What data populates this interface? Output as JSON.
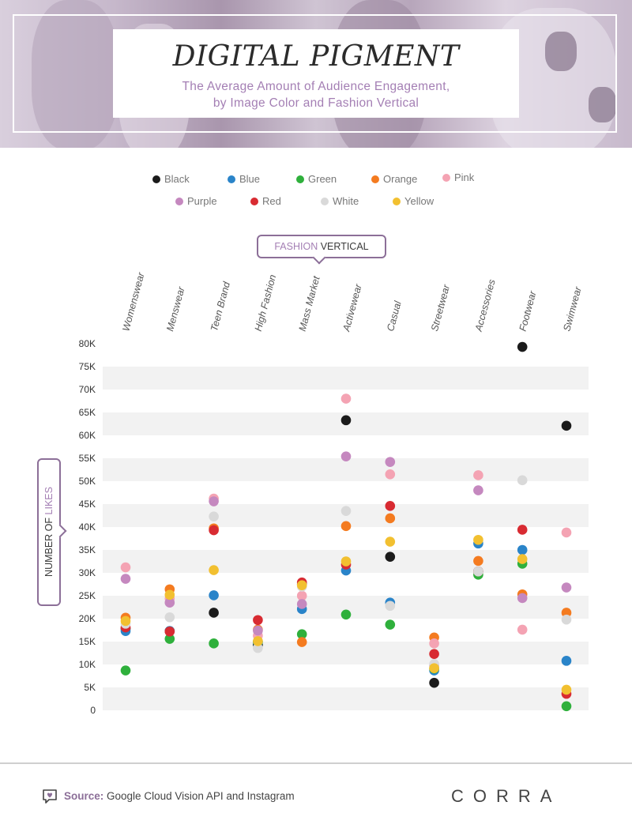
{
  "header": {
    "title": "DIGITAL PIGMENT",
    "subtitle_line1": "The Average Amount of Audience Engagement,",
    "subtitle_line2": "by Image Color and Fashion Vertical"
  },
  "axis_labels": {
    "x_part1": "FASHION",
    "x_part2": "VERTICAL",
    "y_part1": "NUMBER OF",
    "y_part2": "LIKES"
  },
  "footer": {
    "source_label": "Source:",
    "source_text": "Google Cloud Vision API and Instagram",
    "brand": "CORRA"
  },
  "colors": {
    "Black": "#1b1b1b",
    "Blue": "#2a84c9",
    "Green": "#2fb03c",
    "Orange": "#f47b20",
    "Pink": "#f4a3b3",
    "Purple": "#c588bf",
    "Red": "#d82b32",
    "White": "#d9d9d9",
    "Yellow": "#f2c030",
    "accent": "#8c6f98",
    "band": "#f2f2f2"
  },
  "chart_data": {
    "type": "scatter",
    "categories": [
      "Womenswear",
      "Menswear",
      "Teen Brand",
      "High Fashion",
      "Mass Market",
      "Activewear",
      "Casual",
      "Streetwear",
      "Accessories",
      "Footwear",
      "Swimwear"
    ],
    "ylim": [
      0,
      80000
    ],
    "yticks": [
      0,
      5000,
      10000,
      15000,
      20000,
      25000,
      30000,
      35000,
      40000,
      45000,
      50000,
      55000,
      60000,
      65000,
      70000,
      75000,
      80000
    ],
    "ytick_labels": [
      "0",
      "5K",
      "10K",
      "15K",
      "20K",
      "25K",
      "30K",
      "35K",
      "40K",
      "45K",
      "50K",
      "55K",
      "60K",
      "65K",
      "70K",
      "75K",
      "80K"
    ],
    "grid": "alternating horizontal bands",
    "legend": "top-center",
    "series": [
      {
        "name": "Black",
        "values": [
          17800,
          17300,
          21300,
          14300,
          27500,
          63300,
          33500,
          6000,
          30300,
          79300,
          62100
        ]
      },
      {
        "name": "Blue",
        "values": [
          17300,
          17300,
          25100,
          14900,
          22100,
          30500,
          23500,
          8700,
          36400,
          35000,
          10800
        ]
      },
      {
        "name": "Green",
        "values": [
          8700,
          15600,
          14600,
          15000,
          16600,
          20900,
          18700,
          9100,
          29600,
          32000,
          900
        ]
      },
      {
        "name": "Orange",
        "values": [
          20200,
          26400,
          39700,
          17600,
          14900,
          40200,
          41900,
          15900,
          32600,
          25300,
          21300
        ]
      },
      {
        "name": "Pink",
        "values": [
          31200,
          24400,
          46200,
          16300,
          25000,
          68000,
          51500,
          14600,
          51300,
          17600,
          38800
        ]
      },
      {
        "name": "Purple",
        "values": [
          28700,
          23500,
          45600,
          17400,
          23200,
          55400,
          54200,
          9800,
          48000,
          24500,
          26800
        ]
      },
      {
        "name": "Red",
        "values": [
          18100,
          17200,
          39300,
          19700,
          27900,
          31800,
          44600,
          12300,
          30300,
          39400,
          3600
        ]
      },
      {
        "name": "White",
        "values": [
          18900,
          20300,
          42300,
          13600,
          27000,
          43500,
          22800,
          10100,
          30300,
          50200,
          19800
        ]
      },
      {
        "name": "Yellow",
        "values": [
          19500,
          25200,
          30600,
          15100,
          27300,
          32500,
          36800,
          9200,
          37200,
          33000,
          4500
        ]
      }
    ]
  }
}
